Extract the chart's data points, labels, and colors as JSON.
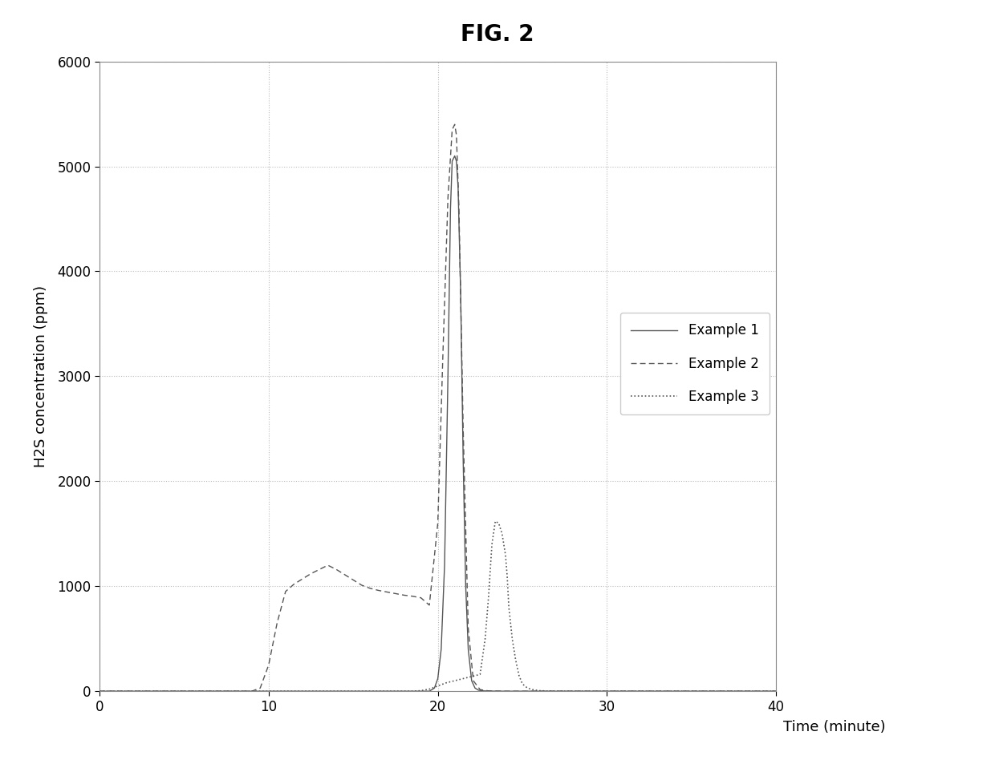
{
  "title": "FIG. 2",
  "xlabel": "Time (minute)",
  "ylabel": "H2S concentration (ppm)",
  "xlim": [
    0,
    40
  ],
  "ylim": [
    0,
    6000
  ],
  "xticks": [
    0,
    10,
    20,
    30,
    40
  ],
  "yticks": [
    0,
    1000,
    2000,
    3000,
    4000,
    5000,
    6000
  ],
  "grid_color": "#bbbbbb",
  "line_color": "#555555",
  "background_color": "#ffffff",
  "legend_entries": [
    "Example 1",
    "Example 2",
    "Example 3"
  ],
  "example2": {
    "x": [
      0,
      9.0,
      9.5,
      10.0,
      10.5,
      11.0,
      11.5,
      12.0,
      12.5,
      13.0,
      13.5,
      14.0,
      14.5,
      15.0,
      15.5,
      16.0,
      16.5,
      17.0,
      17.5,
      18.0,
      18.5,
      19.0,
      19.5,
      20.0,
      20.3,
      20.6,
      20.85,
      21.0,
      21.1,
      21.25,
      21.5,
      21.8,
      22.1,
      22.5,
      23.0,
      24.0,
      40.0
    ],
    "y": [
      0,
      0,
      30,
      250,
      650,
      950,
      1020,
      1070,
      1120,
      1160,
      1200,
      1160,
      1110,
      1060,
      1010,
      980,
      960,
      945,
      930,
      915,
      905,
      890,
      820,
      1600,
      3200,
      4700,
      5350,
      5400,
      5300,
      4600,
      2500,
      600,
      100,
      15,
      3,
      0,
      0
    ],
    "linestyle": "dashed",
    "linewidth": 1.0
  },
  "example1": {
    "x": [
      0,
      19.5,
      19.8,
      20.0,
      20.2,
      20.4,
      20.6,
      20.75,
      20.85,
      21.0,
      21.1,
      21.2,
      21.35,
      21.5,
      21.65,
      21.8,
      22.0,
      22.2,
      22.4,
      22.7,
      23.2,
      24.0,
      40.0
    ],
    "y": [
      0,
      0,
      30,
      120,
      400,
      1200,
      3000,
      4600,
      5050,
      5100,
      5050,
      4800,
      3800,
      2200,
      1000,
      400,
      100,
      30,
      10,
      3,
      1,
      0,
      0
    ],
    "linestyle": "solid",
    "linewidth": 1.0
  },
  "example3": {
    "x": [
      0,
      18.5,
      19.0,
      19.5,
      20.0,
      20.5,
      21.0,
      21.5,
      22.0,
      22.5,
      22.8,
      23.0,
      23.2,
      23.4,
      23.6,
      23.8,
      24.0,
      24.1,
      24.2,
      24.4,
      24.6,
      24.8,
      25.0,
      25.3,
      25.6,
      26.0,
      26.5,
      27.0,
      28.0,
      40.0
    ],
    "y": [
      0,
      0,
      5,
      20,
      50,
      80,
      100,
      120,
      140,
      160,
      500,
      900,
      1400,
      1620,
      1600,
      1500,
      1300,
      1100,
      800,
      500,
      300,
      150,
      70,
      30,
      15,
      5,
      2,
      1,
      0,
      0
    ],
    "linestyle": "dotted",
    "linewidth": 1.2
  }
}
